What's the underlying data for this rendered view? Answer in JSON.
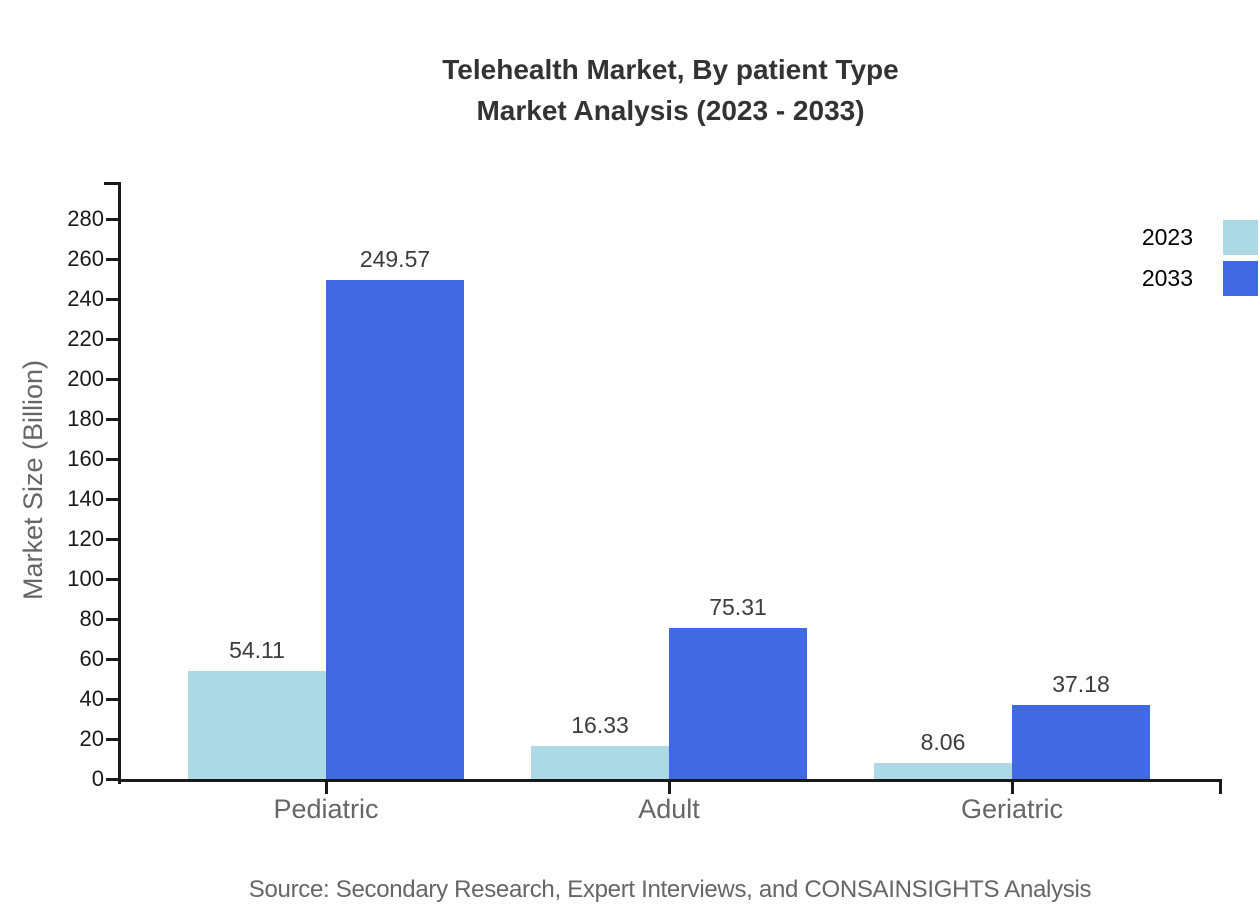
{
  "title": {
    "line1": "Telehealth Market, By patient Type",
    "line2": "Market Analysis (2023 - 2033)"
  },
  "source": "Source: Secondary Research, Expert Interviews, and CONSAINSIGHTS Analysis",
  "chart_data": {
    "type": "bar",
    "categories": [
      "Pediatric",
      "Adult",
      "Geriatric"
    ],
    "series": [
      {
        "name": "2023",
        "color": "#ADD8E6",
        "values": [
          54.11,
          16.33,
          8.06
        ]
      },
      {
        "name": "2033",
        "color": "#4169E1",
        "values": [
          249.57,
          75.31,
          37.18
        ]
      }
    ],
    "value_labels": [
      "54.11",
      "249.57",
      "16.33",
      "75.31",
      "8.06",
      "37.18"
    ],
    "title": "Telehealth Market, By patient Type Market Analysis (2023 - 2033)",
    "xlabel": "",
    "ylabel": "Market Size (Billion)",
    "ylim": [
      0,
      280
    ],
    "ytick_step": 20,
    "grid": false,
    "legend_position": "top-right",
    "axis_color": "#1a1a1a"
  }
}
